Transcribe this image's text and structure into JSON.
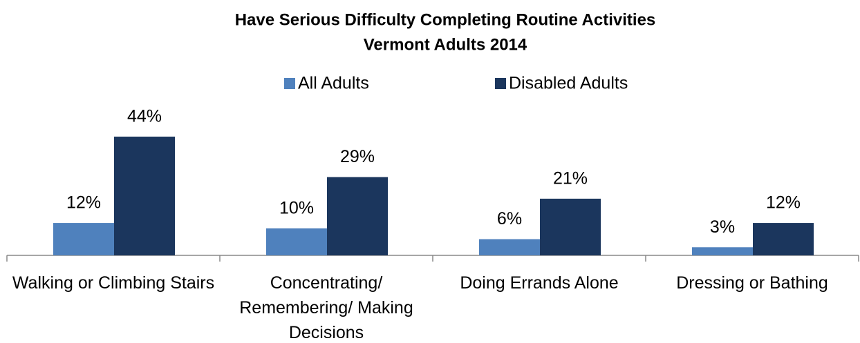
{
  "chart_data": {
    "type": "bar",
    "title": "Have Serious Difficulty Completing Routine Activities",
    "subtitle": "Vermont Adults 2014",
    "categories": [
      "Walking or Climbing Stairs",
      "Concentrating/ Remembering/ Making Decisions",
      "Doing Errands Alone",
      "Dressing or Bathing"
    ],
    "series": [
      {
        "name": "All Adults",
        "color": "#4f81bd",
        "values": [
          12,
          10,
          6,
          3
        ],
        "value_labels": [
          "12%",
          "10%",
          "6%",
          "3%"
        ]
      },
      {
        "name": "Disabled Adults",
        "color": "#1b365d",
        "values": [
          44,
          29,
          21,
          12
        ],
        "value_labels": [
          "44%",
          "29%",
          "21%",
          "12%"
        ]
      }
    ],
    "legend": "top"
  }
}
